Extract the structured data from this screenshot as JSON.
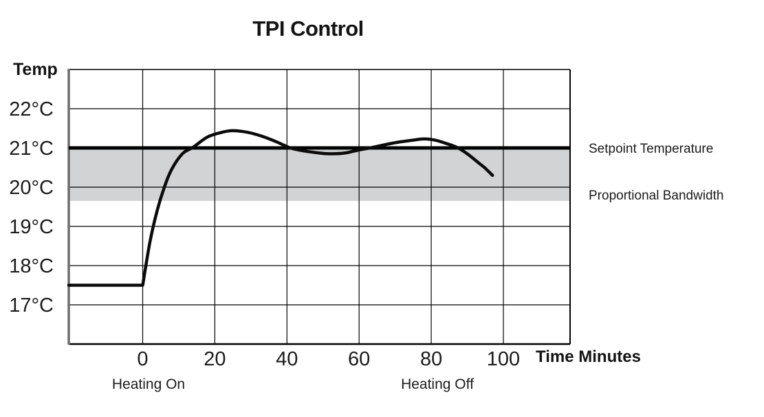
{
  "title": "TPI Control",
  "colors": {
    "background": "#ffffff",
    "text": "#1b1b1b",
    "grid": "#000000",
    "curve": "#0b0b0b",
    "setpoint_line": "#000000",
    "band_fill": "#d2d3d4",
    "left_axis": "#6e6e6e"
  },
  "chart_data": {
    "type": "line",
    "title": "TPI Control",
    "xlabel": "Time Minutes",
    "ylabel": "Temp",
    "xlim": [
      -20.5,
      118.5
    ],
    "ylim": [
      16,
      23
    ],
    "grid": "on",
    "x_ticks": [
      {
        "value": 0,
        "label": "0"
      },
      {
        "value": 20,
        "label": "20"
      },
      {
        "value": 40,
        "label": "40"
      },
      {
        "value": 60,
        "label": "60"
      },
      {
        "value": 80,
        "label": "80"
      },
      {
        "value": 100,
        "label": "100"
      }
    ],
    "y_ticks": [
      {
        "value": 22,
        "label": "22°C"
      },
      {
        "value": 21,
        "label": "21°C"
      },
      {
        "value": 20,
        "label": "20°C"
      },
      {
        "value": 19,
        "label": "19°C"
      },
      {
        "value": 18,
        "label": "18°C"
      },
      {
        "value": 17,
        "label": "17°C"
      }
    ],
    "setpoint": {
      "label": "Setpoint Temperature",
      "value": 21
    },
    "proportional_band": {
      "label": "Proportional Bandwidth",
      "from": 19.65,
      "to": 21
    },
    "annotations": [
      {
        "label": "Heating On",
        "t": 0
      },
      {
        "label": "Heating Off",
        "t": 80
      }
    ],
    "series": [
      {
        "name": "Temperature",
        "points": [
          [
            -20.5,
            17.5
          ],
          [
            0,
            17.5
          ],
          [
            2,
            18.6
          ],
          [
            4,
            19.4
          ],
          [
            6,
            20.0
          ],
          [
            8,
            20.45
          ],
          [
            11,
            20.85
          ],
          [
            14,
            21.02
          ],
          [
            18,
            21.28
          ],
          [
            22,
            21.4
          ],
          [
            25,
            21.44
          ],
          [
            29,
            21.4
          ],
          [
            33,
            21.3
          ],
          [
            37,
            21.16
          ],
          [
            41,
            21.0
          ],
          [
            45,
            20.92
          ],
          [
            49,
            20.87
          ],
          [
            52,
            20.85
          ],
          [
            56,
            20.87
          ],
          [
            60,
            20.95
          ],
          [
            63,
            21.0
          ],
          [
            67,
            21.08
          ],
          [
            71,
            21.15
          ],
          [
            75,
            21.2
          ],
          [
            78,
            21.23
          ],
          [
            81,
            21.2
          ],
          [
            84,
            21.12
          ],
          [
            87,
            21.02
          ],
          [
            90,
            20.85
          ],
          [
            93,
            20.63
          ],
          [
            95,
            20.48
          ],
          [
            97,
            20.3
          ]
        ]
      }
    ]
  }
}
